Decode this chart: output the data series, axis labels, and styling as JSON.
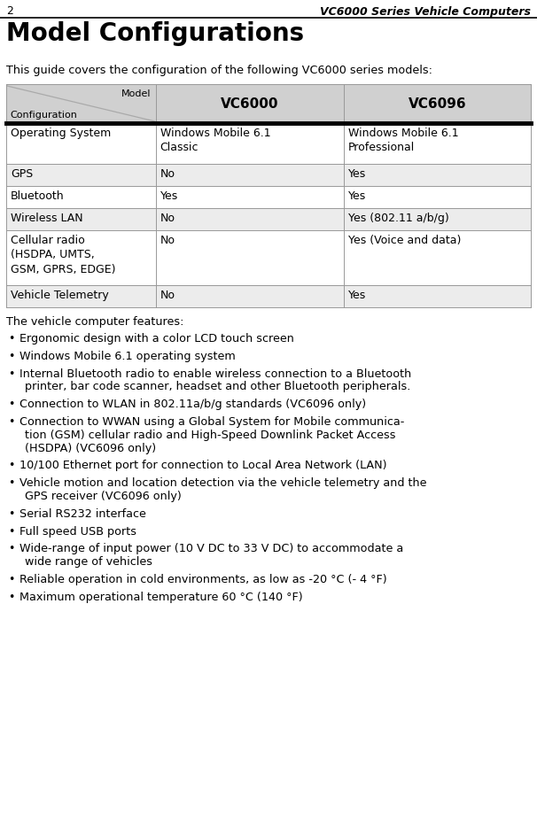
{
  "page_number": "2",
  "header_title": "VC6000 Series Vehicle Computers",
  "section_title": "Model Configurations",
  "intro_text": "This guide covers the configuration of the following VC6000 series models:",
  "table_header": {
    "col0_top": "Model",
    "col0_bottom": "Configuration",
    "col1": "VC6000",
    "col2": "VC6096"
  },
  "table_rows": [
    {
      "feature": "Operating System",
      "vc6000": "Windows Mobile 6.1\nClassic",
      "vc6096": "Windows Mobile 6.1\nProfessional"
    },
    {
      "feature": "GPS",
      "vc6000": "No",
      "vc6096": "Yes"
    },
    {
      "feature": "Bluetooth",
      "vc6000": "Yes",
      "vc6096": "Yes"
    },
    {
      "feature": "Wireless LAN",
      "vc6000": "No",
      "vc6096": "Yes (802.11 a/b/g)"
    },
    {
      "feature": "Cellular radio\n(HSDPA, UMTS,\nGSM, GPRS, EDGE)",
      "vc6000": "No",
      "vc6096": "Yes (Voice and data)"
    },
    {
      "feature": "Vehicle Telemetry",
      "vc6000": "No",
      "vc6096": "Yes"
    }
  ],
  "features_intro": "The vehicle computer features:",
  "bullet_points": [
    [
      "Ergonomic design with a color LCD touch screen"
    ],
    [
      "Windows Mobile 6.1 operating system"
    ],
    [
      "Internal Bluetooth radio to enable wireless connection to a Bluetooth",
      "printer, bar code scanner, headset and other Bluetooth peripherals."
    ],
    [
      "Connection to WLAN in 802.11a/b/g standards (VC6096 only)"
    ],
    [
      "Connection to WWAN using a Global System for Mobile communica-",
      "tion (GSM) cellular radio and High-Speed Downlink Packet Access",
      "(HSDPA) (VC6096 only)"
    ],
    [
      "10/100 Ethernet port for connection to Local Area Network (LAN)"
    ],
    [
      "Vehicle motion and location detection via the vehicle telemetry and the",
      "GPS receiver (VC6096 only)"
    ],
    [
      "Serial RS232 interface"
    ],
    [
      "Full speed USB ports"
    ],
    [
      "Wide-range of input power (10 V DC to 33 V DC) to accommodate a",
      "wide range of vehicles"
    ],
    [
      "Reliable operation in cold environments, as low as -20 °C (- 4 °F)"
    ],
    [
      "Maximum operational temperature 60 °C (140 °F)"
    ]
  ],
  "bg_color": "#ffffff",
  "header_bg": "#d0d0d0",
  "row_alt_bg": "#f0f0f0",
  "border_color": "#999999",
  "thick_border_color": "#000000"
}
